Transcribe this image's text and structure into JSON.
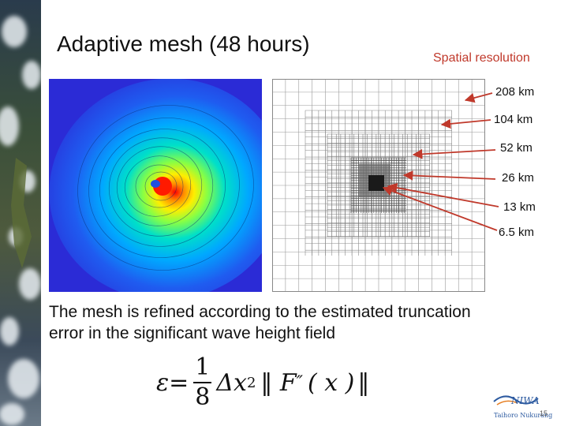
{
  "slide": {
    "title": "Adaptive mesh (48 hours)",
    "resolution_title": "Spatial resolution",
    "resolution_labels": [
      "208 km",
      "104 km",
      "52 km",
      "26 km",
      "13 km",
      "6.5 km"
    ],
    "caption": "The mesh is refined according to the estimated truncation error in the significant wave height field",
    "formula": {
      "lhs": "ε=",
      "numerator": "1",
      "denominator": "8",
      "rest_a": "Δx",
      "exp": "2",
      "norm_open": "‖ F",
      "prime": "″",
      "paren": "( x )",
      "norm_close": "‖"
    },
    "logo": {
      "name": "NIWA",
      "subtitle": "Taihoro Nukurangi"
    },
    "page_number": "15"
  },
  "colors": {
    "resolution_title": "#c0392b",
    "arrow": "#c0392b",
    "heatmap_background": "#2b2bd6",
    "logo": "#2c5aa0"
  }
}
